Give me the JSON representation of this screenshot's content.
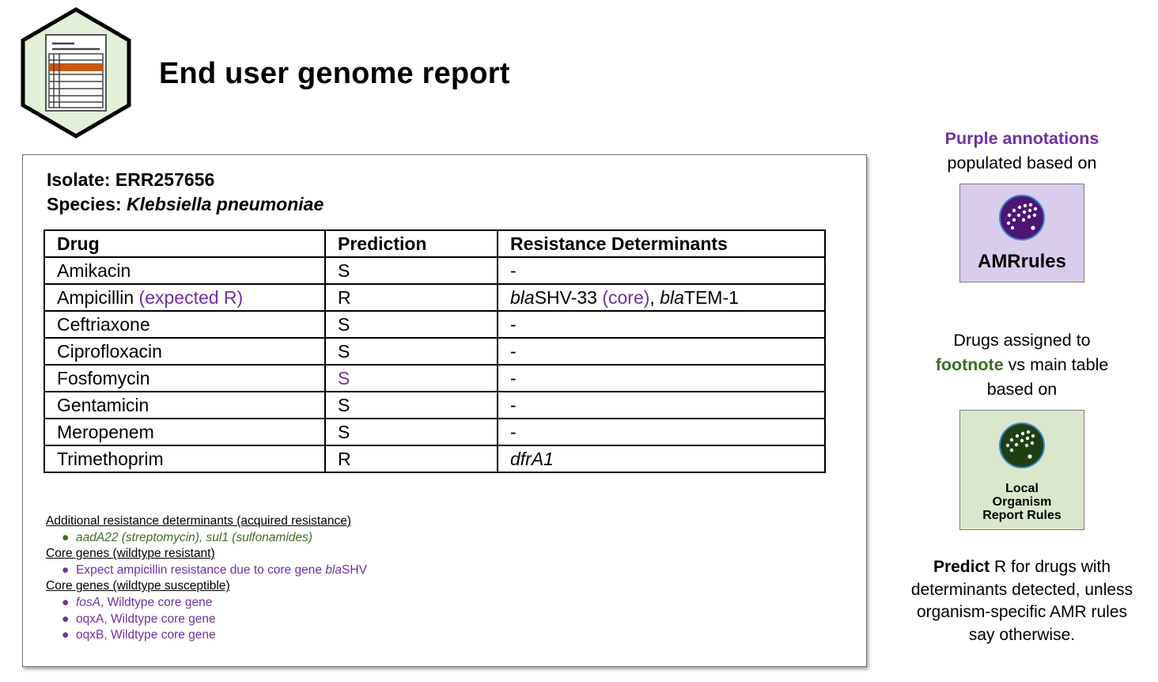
{
  "title": "End user genome report",
  "report": {
    "isolate_label": "Isolate: ",
    "isolate_value": "ERR257656",
    "species_label": "Species: ",
    "species_value": "Klebsiella pneumoniae",
    "table": {
      "headers": [
        "Drug",
        "Prediction",
        "Resistance Determinants"
      ],
      "rows": [
        {
          "drug": "Amikacin",
          "prediction": "S",
          "determinants": "-"
        },
        {
          "drug": "Ampicillin",
          "drug_note": "(expected R)",
          "prediction": "R",
          "det_parts": {
            "g1_prefix": "bla",
            "g1_suffix": "SHV-33",
            "g1_note": "(core)",
            "sep": ", ",
            "g2_prefix": "bla",
            "g2_suffix": "TEM-1"
          }
        },
        {
          "drug": "Ceftriaxone",
          "prediction": "S",
          "determinants": "-"
        },
        {
          "drug": "Ciprofloxacin",
          "prediction": "S",
          "determinants": "-"
        },
        {
          "drug": "Fosfomycin",
          "prediction": "S",
          "determinants": "-"
        },
        {
          "drug": "Gentamicin",
          "prediction": "S",
          "determinants": "-"
        },
        {
          "drug": "Meropenem",
          "prediction": "S",
          "determinants": "-"
        },
        {
          "drug": "Trimethoprim",
          "prediction": "R",
          "determinants": "dfrA1"
        }
      ]
    },
    "footnotes": {
      "acquired_heading": "Additional resistance determinants (acquired resistance)",
      "acquired_item": "aadA22 (streptomycin), sul1 (sulfonamides)",
      "core_resistant_heading": "Core genes (wildtype resistant)",
      "core_resistant_item_prefix": "Expect ampicillin resistance due to core gene ",
      "core_resistant_item_gene_italic": "bla",
      "core_resistant_item_gene_rest": "SHV",
      "core_susceptible_heading": "Core genes (wildtype susceptible)",
      "core_susceptible_items": [
        {
          "gene": "fosA",
          "italic": true,
          "text": ", Wildtype core gene"
        },
        {
          "gene": "oqxA",
          "italic": false,
          "text": ", Wildtype core gene"
        },
        {
          "gene": "oqxB",
          "italic": false,
          "text": ", Wildtype core gene"
        }
      ]
    }
  },
  "sidebar": {
    "purple_annotations": "Purple annotations",
    "populated_based_on": "populated based on",
    "amr_box_label": "AMRrules",
    "drugs_assigned_to": "Drugs assigned to",
    "footnote_word": "footnote",
    "vs_main_table": " vs main table",
    "based_on": "based on",
    "local_box_line1": "Local",
    "local_box_line2": "Organism",
    "local_box_line3": "Report Rules",
    "predict_bold": "Predict",
    "predict_rest": " R for drugs with determinants detected, unless organism-specific AMR rules say otherwise."
  },
  "colors": {
    "purple": "#7030a0",
    "green": "#3b6e22",
    "hex_fill": "#e2efd9",
    "highlight_row": "#c55a11",
    "amr_box": "#d9ccec",
    "local_box": "#d9e8cc"
  },
  "icons": [
    "report-document-icon",
    "amrrules-logo-icon",
    "local-rules-logo-icon"
  ]
}
